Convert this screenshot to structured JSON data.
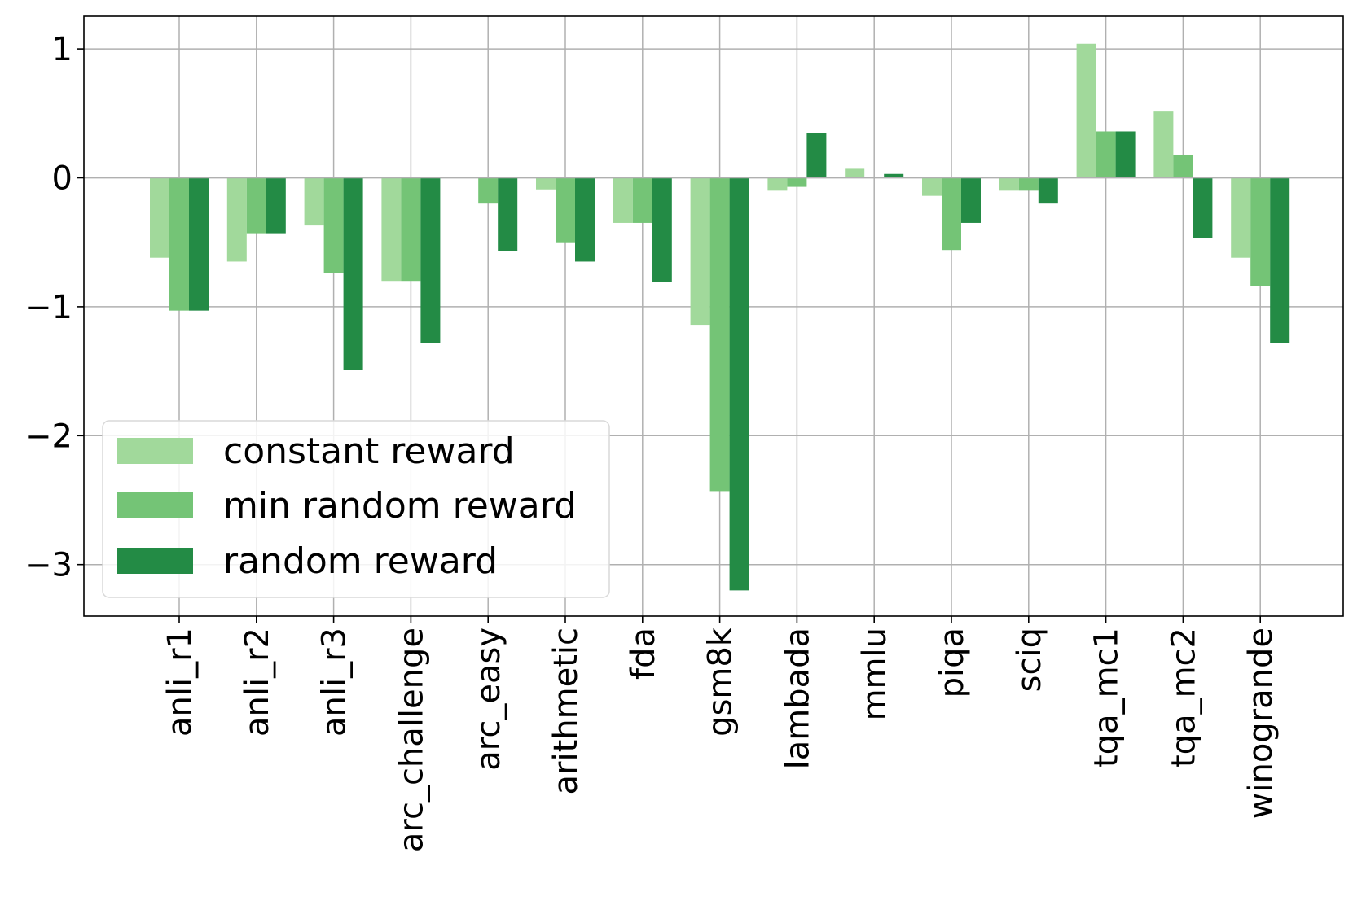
{
  "chart_data": {
    "type": "bar",
    "title": "",
    "xlabel": "",
    "ylabel": "",
    "ylim": [
      -3.4,
      1.25
    ],
    "yticks": [
      1,
      0,
      -1,
      -2,
      -3
    ],
    "ytick_labels": [
      "1",
      "0",
      "−1",
      "−2",
      "−3"
    ],
    "grid": true,
    "legend_position": "lower-left",
    "categories": [
      "anli_r1",
      "anli_r2",
      "anli_r3",
      "arc_challenge",
      "arc_easy",
      "arithmetic",
      "fda",
      "gsm8k",
      "lambada",
      "mmlu",
      "piqa",
      "sciq",
      "tqa_mc1",
      "tqa_mc2",
      "winogrande"
    ],
    "series": [
      {
        "name": "constant reward",
        "color": "#a1d99b",
        "values": [
          -0.62,
          -0.65,
          -0.37,
          -0.8,
          0.0,
          -0.09,
          -0.35,
          -1.14,
          -0.1,
          0.07,
          -0.14,
          -0.1,
          1.04,
          0.52,
          -0.62
        ]
      },
      {
        "name": "min random reward",
        "color": "#74c476",
        "values": [
          -1.03,
          -0.43,
          -0.74,
          -0.8,
          -0.2,
          -0.5,
          -0.35,
          -2.43,
          -0.07,
          0.0,
          -0.56,
          -0.1,
          0.36,
          0.18,
          -0.84
        ]
      },
      {
        "name": "random reward",
        "color": "#238b45",
        "values": [
          -1.03,
          -0.43,
          -1.49,
          -1.28,
          -0.57,
          -0.65,
          -0.81,
          -3.2,
          0.35,
          0.03,
          -0.35,
          -0.2,
          0.36,
          -0.47,
          -1.28
        ]
      }
    ]
  }
}
